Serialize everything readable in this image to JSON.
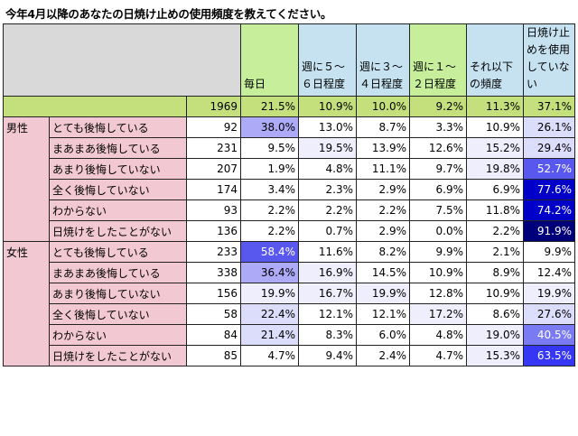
{
  "title": "今年4月以降のあなたの日焼け止めの使用頻度を教えてください。",
  "columns": [
    {
      "label": "毎日",
      "bg": "#c7ef9b"
    },
    {
      "label": "週に５～\n６日程度",
      "bg": "#c6e2f0"
    },
    {
      "label": "週に３～\n４日程度",
      "bg": "#c6e2f0"
    },
    {
      "label": "週に１～\n２日程度",
      "bg": "#c7ef9b"
    },
    {
      "label": "それ以下\nの頻度",
      "bg": "#c6e2f0"
    },
    {
      "label": "日焼け止\nめを使用\nしていない",
      "bg": "#c6e2f0"
    }
  ],
  "total": {
    "n": "1969",
    "values": [
      "21.5%",
      "10.9%",
      "10.0%",
      "9.2%",
      "11.3%",
      "37.1%"
    ]
  },
  "groups": [
    {
      "sex": "男性",
      "rows": [
        {
          "label": "とても後悔している",
          "n": "92",
          "values": [
            "38.0%",
            "13.0%",
            "8.7%",
            "3.3%",
            "10.9%",
            "26.1%"
          ]
        },
        {
          "label": "まあまあ後悔している",
          "n": "231",
          "values": [
            "9.5%",
            "19.5%",
            "13.9%",
            "12.6%",
            "15.2%",
            "29.4%"
          ]
        },
        {
          "label": "あまり後悔していない",
          "n": "207",
          "values": [
            "1.9%",
            "4.8%",
            "11.1%",
            "9.7%",
            "19.8%",
            "52.7%"
          ]
        },
        {
          "label": "全く後悔していない",
          "n": "174",
          "values": [
            "3.4%",
            "2.3%",
            "2.9%",
            "6.9%",
            "6.9%",
            "77.6%"
          ]
        },
        {
          "label": "わからない",
          "n": "93",
          "values": [
            "2.2%",
            "2.2%",
            "2.2%",
            "7.5%",
            "11.8%",
            "74.2%"
          ]
        },
        {
          "label": "日焼けをしたことがない",
          "n": "136",
          "values": [
            "2.2%",
            "0.7%",
            "2.9%",
            "0.0%",
            "2.2%",
            "91.9%"
          ]
        }
      ]
    },
    {
      "sex": "女性",
      "rows": [
        {
          "label": "とても後悔している",
          "n": "233",
          "values": [
            "58.4%",
            "11.6%",
            "8.2%",
            "9.9%",
            "2.1%",
            "9.9%"
          ]
        },
        {
          "label": "まあまあ後悔している",
          "n": "338",
          "values": [
            "36.4%",
            "16.9%",
            "14.5%",
            "10.9%",
            "8.9%",
            "12.4%"
          ]
        },
        {
          "label": "あまり後悔していない",
          "n": "156",
          "values": [
            "19.9%",
            "16.7%",
            "19.9%",
            "12.8%",
            "10.9%",
            "19.9%"
          ]
        },
        {
          "label": "全く後悔していない",
          "n": "58",
          "values": [
            "22.4%",
            "12.1%",
            "12.1%",
            "17.2%",
            "8.6%",
            "27.6%"
          ]
        },
        {
          "label": "わからない",
          "n": "84",
          "values": [
            "21.4%",
            "8.3%",
            "6.0%",
            "4.8%",
            "19.0%",
            "40.5%"
          ]
        },
        {
          "label": "日焼けをしたことがない",
          "n": "85",
          "values": [
            "4.7%",
            "9.4%",
            "2.4%",
            "4.7%",
            "15.3%",
            "63.5%"
          ]
        }
      ]
    }
  ],
  "colors": {
    "label_bg": "#f2c9d2",
    "total_row_bg": "#c4e07d",
    "corner_bg": "#d9d9d9",
    "highlight_scale": "percent-based blue intensity"
  }
}
